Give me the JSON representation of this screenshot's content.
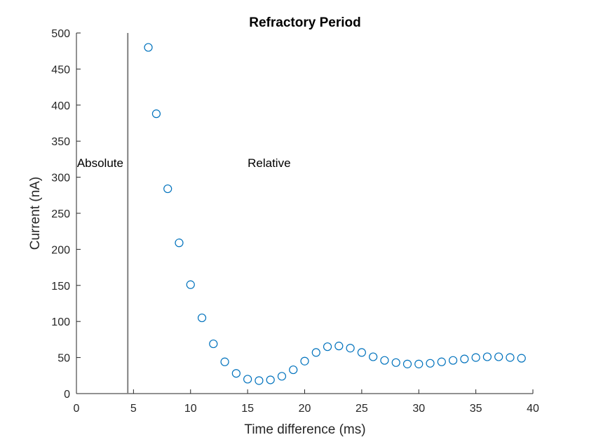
{
  "chart_data": {
    "type": "scatter",
    "title": "Refractory Period",
    "xlabel": "Time difference (ms)",
    "ylabel": "Current (nA)",
    "xlim": [
      0,
      40
    ],
    "ylim": [
      0,
      500
    ],
    "xticks": [
      0,
      5,
      10,
      15,
      20,
      25,
      30,
      35,
      40
    ],
    "yticks": [
      0,
      50,
      100,
      150,
      200,
      250,
      300,
      350,
      400,
      450,
      500
    ],
    "grid": false,
    "marker": "open-circle",
    "marker_color": "#0072BD",
    "series": [
      {
        "x": [
          6.3,
          7,
          8,
          9,
          10,
          11,
          12,
          13,
          14,
          15,
          16,
          17,
          18,
          19,
          20,
          21,
          22,
          23,
          24,
          25,
          26,
          27,
          28,
          29,
          30,
          31,
          32,
          33,
          34,
          35,
          36,
          37,
          38,
          39
        ],
        "y": [
          480,
          388,
          284,
          209,
          151,
          105,
          69,
          44,
          28,
          20,
          18,
          19,
          24,
          33,
          45,
          57,
          65,
          66,
          63,
          57,
          51,
          46,
          43,
          41,
          41,
          42,
          44,
          46,
          48,
          50,
          51,
          51,
          50,
          49
        ]
      }
    ],
    "vertical_line": {
      "x": 4.5,
      "color": "#808080"
    },
    "annotations": [
      {
        "text": "Absolute",
        "x": 0.05,
        "y": 320
      },
      {
        "text": "Relative",
        "x": 15,
        "y": 320
      }
    ]
  }
}
